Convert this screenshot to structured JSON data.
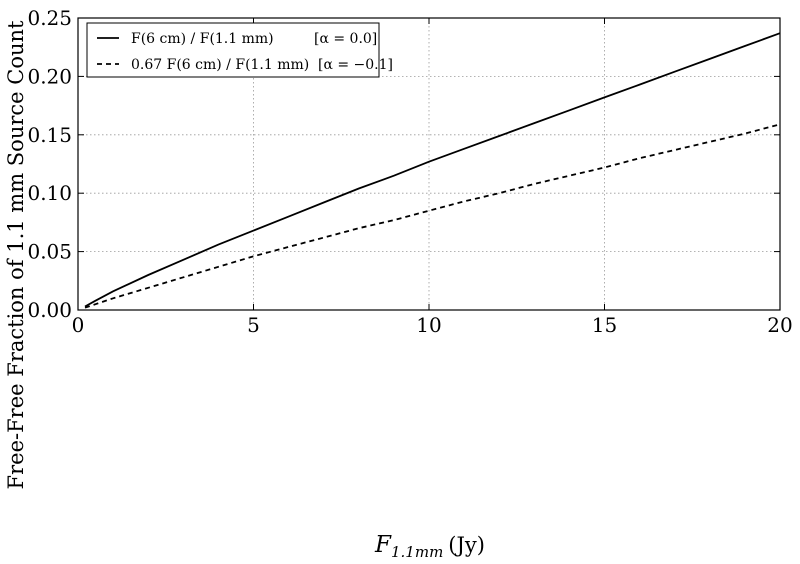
{
  "chart_data": {
    "type": "line",
    "title": "",
    "xlabel_main": "F",
    "xlabel_sub": "1.1mm",
    "xlabel_unit": "(Jy)",
    "ylabel": "Free-Free Fraction of 1.1 mm Source Count",
    "xlim": [
      0,
      20
    ],
    "ylim": [
      0,
      0.25
    ],
    "xticks": [
      0,
      5,
      10,
      15,
      20
    ],
    "xtick_labels": [
      "0",
      "5",
      "10",
      "15",
      "20"
    ],
    "yticks": [
      0,
      0.05,
      0.1,
      0.15,
      0.2,
      0.25
    ],
    "ytick_labels": [
      "0.00",
      "0.05",
      "0.10",
      "0.15",
      "0.20",
      "0.25"
    ],
    "grid": true,
    "legend_position": "top-left",
    "x": [
      0.2,
      0.5,
      1,
      2,
      3,
      4,
      5,
      6,
      7,
      8,
      9,
      10,
      11,
      12,
      13,
      14,
      15,
      16,
      17,
      18,
      19,
      20
    ],
    "series": [
      {
        "name": "F(6 cm) / F(1.1 mm)",
        "alpha_label": "[α = 0.0]",
        "style": "solid",
        "values": [
          0.003,
          0.008,
          0.016,
          0.03,
          0.043,
          0.056,
          0.068,
          0.08,
          0.092,
          0.104,
          0.115,
          0.127,
          0.138,
          0.149,
          0.16,
          0.171,
          0.182,
          0.193,
          0.204,
          0.215,
          0.226,
          0.237
        ]
      },
      {
        "name": "0.67 F(6 cm) / F(1.1 mm)",
        "alpha_label": "[α = −0.1]",
        "style": "dashed",
        "values": [
          0.002,
          0.005,
          0.01,
          0.019,
          0.028,
          0.037,
          0.046,
          0.054,
          0.062,
          0.07,
          0.077,
          0.085,
          0.093,
          0.1,
          0.108,
          0.115,
          0.122,
          0.13,
          0.137,
          0.144,
          0.151,
          0.159
        ]
      }
    ]
  }
}
